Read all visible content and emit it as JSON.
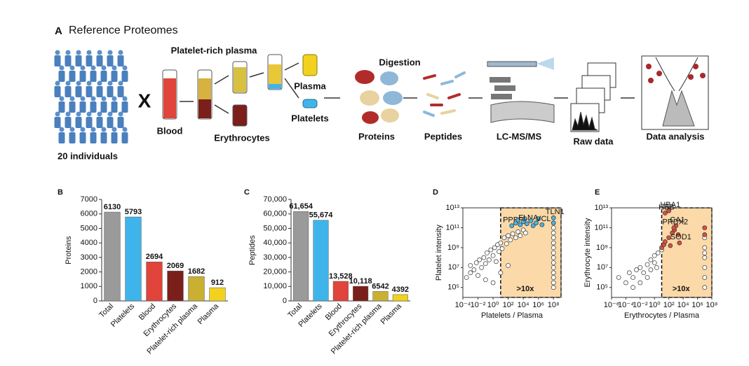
{
  "panel_a": {
    "label": "A",
    "title": "Reference Proteomes",
    "cohort": "20 individuals",
    "cross": "X",
    "blood": "Blood",
    "prp": "Platelet-rich plasma",
    "erythrocytes": "Erythrocytes",
    "plasma": "Plasma",
    "platelets": "Platelets",
    "digestion": "Digestion",
    "proteins": "Proteins",
    "peptides": "Peptides",
    "lcms": "LC-MS/MS",
    "raw": "Raw data",
    "analysis": "Data analysis"
  },
  "chart_data": [
    {
      "type": "bar",
      "panel": "B",
      "y_label": "Proteins",
      "categories": [
        "Total",
        "Platelets",
        "Blood",
        "Erythrocytes",
        "Platelet-rich plasma",
        "Plasma"
      ],
      "values": [
        6130,
        5793,
        2694,
        2069,
        1682,
        912
      ],
      "colors": [
        "#9a9a9a",
        "#3fb4ea",
        "#e0443a",
        "#7a1f1a",
        "#c9b032",
        "#f2d21e"
      ],
      "ylim": [
        0,
        7000
      ],
      "yticks": [
        0,
        1000,
        2000,
        3000,
        4000,
        5000,
        6000,
        7000
      ]
    },
    {
      "type": "bar",
      "panel": "C",
      "y_label": "Peptides",
      "categories": [
        "Total",
        "Platelets",
        "Blood",
        "Erythrocytes",
        "Platelet-rich plasma",
        "Plasma"
      ],
      "values": [
        61654,
        55674,
        13528,
        10118,
        6542,
        4392
      ],
      "value_labels": [
        "61,654",
        "55,674",
        "13,528",
        "10,118",
        "6542",
        "4392"
      ],
      "colors": [
        "#9a9a9a",
        "#3fb4ea",
        "#e0443a",
        "#7a1f1a",
        "#c9b032",
        "#f2d21e"
      ],
      "ylim": [
        0,
        70000
      ],
      "yticks": [
        0,
        {
          "value": 10000,
          "label": "10,000"
        },
        {
          "value": 20000,
          "label": "20,000"
        },
        {
          "value": 30000,
          "label": "30,000"
        },
        {
          "value": 40000,
          "label": "40,000"
        },
        {
          "value": 50000,
          "label": "50,000"
        },
        {
          "value": 60000,
          "label": "60,000"
        },
        {
          "value": 70000,
          "label": "70,000"
        }
      ]
    },
    {
      "type": "scatter",
      "panel": "D",
      "x_label": "Platelets / Plasma",
      "y_label": "Platelet intensity",
      "xscale": "log",
      "yscale": "log",
      "xlim": [
        0.0001,
        1000000000.0
      ],
      "ylim": [
        10000,
        10000000000000.0
      ],
      "xticks": [
        {
          "value": 0.0001,
          "label": "10⁻⁴"
        },
        {
          "value": 0.01,
          "label": "10⁻²"
        },
        {
          "value": 1,
          "label": "10⁰"
        },
        {
          "value": 100,
          "label": "10²"
        },
        {
          "value": 10000,
          "label": "10⁴"
        },
        {
          "value": 1000000,
          "label": "10⁶"
        },
        {
          "value": 100000000,
          "label": "10⁸"
        }
      ],
      "yticks": [
        {
          "value": 100000,
          "label": "10⁵"
        },
        {
          "value": 10000000,
          "label": "10⁷"
        },
        {
          "value": 1000000000,
          "label": "10⁹"
        },
        {
          "value": 100000000000,
          "label": "10¹¹"
        },
        {
          "value": 10000000000000,
          "label": "10¹³"
        }
      ],
      "region_from": 10,
      "region_color": "#fbd9a8",
      "region_label": ">10x",
      "series": [
        {
          "color": "#ffffff",
          "x": [
            0.0003,
            0.001,
            0.001,
            0.003,
            0.006,
            0.01,
            0.016,
            0.03,
            0.06,
            0.1,
            0.16,
            0.3,
            0.5,
            1,
            1.6,
            2.5,
            4,
            6,
            10,
            16,
            30,
            60,
            100,
            200,
            400,
            1000,
            2000,
            4000,
            10000,
            20000,
            1,
            0.1,
            10,
            100,
            100000000.0,
            100000000.0,
            100000000.0,
            100000000.0,
            100000000.0,
            100000000.0,
            100000000.0,
            100000000.0,
            100000000.0,
            100000000.0,
            100000000.0,
            100000000.0,
            100000000.0
          ],
          "values": [
            1000000.0,
            3000000.0,
            16000000.0,
            6000000.0,
            30000000.0,
            1600000.0,
            60000000.0,
            10000000.0,
            100000000.0,
            25000000.0,
            300000000.0,
            60000000.0,
            600000000.0,
            160000000.0,
            1000000000.0,
            40000000.0,
            2000000000.0,
            400000000.0,
            3000000000.0,
            800000000.0,
            10000000000.0,
            2500000000.0,
            16000000000.0,
            6000000000.0,
            25000000000.0,
            10000000000.0,
            40000000000.0,
            16000000000.0,
            60000000000.0,
            30000000000.0,
            300000.0,
            600000.0,
            3000000.0,
            16000000.0,
            100000.0,
            1000000.0,
            10000000.0,
            100000000.0,
            1000000000.0,
            10000000000.0,
            100000000000.0,
            300000.0,
            3000000.0,
            30000000.0,
            300000000.0,
            3000000000.0,
            30000000000.0
          ]
        },
        {
          "color": "#4fb3d9",
          "x": [
            300,
            1000,
            2000,
            4000,
            10000,
            16000,
            30000,
            100000.0,
            200000.0,
            500000.0,
            1000000.0,
            3000000.0,
            100000000.0,
            100000000.0
          ],
          "values": [
            160000000000.0,
            300000000000.0,
            600000000000.0,
            200000000000.0,
            400000000000.0,
            800000000000.0,
            250000000000.0,
            500000000000.0,
            160000000000.0,
            300000000000.0,
            800000000000.0,
            200000000000.0,
            1000000000000.0,
            300000000000.0
          ],
          "labels": [
            "PPBP",
            null,
            null,
            null,
            null,
            null,
            "FLNA",
            null,
            null,
            null,
            null,
            "VCL",
            "TLN1",
            null
          ]
        }
      ]
    },
    {
      "type": "scatter",
      "panel": "E",
      "x_label": "Erythrocytes / Plasma",
      "y_label": "Erythrocyte intensity",
      "xscale": "log",
      "yscale": "log",
      "xlim": [
        1e-06,
        100000000.0
      ],
      "ylim": [
        10000,
        10000000000000.0
      ],
      "xticks": [
        {
          "value": 1e-06,
          "label": "10⁻⁶"
        },
        {
          "value": 0.0001,
          "label": "10⁻⁴"
        },
        {
          "value": 0.01,
          "label": "10⁻²"
        },
        {
          "value": 1,
          "label": "10⁰"
        },
        {
          "value": 100,
          "label": "10²"
        },
        {
          "value": 10000,
          "label": "10⁴"
        },
        {
          "value": 1000000,
          "label": "10⁶"
        },
        {
          "value": 100000000,
          "label": "10⁸"
        }
      ],
      "yticks": [
        {
          "value": 100000,
          "label": "10⁵"
        },
        {
          "value": 10000000,
          "label": "10⁷"
        },
        {
          "value": 1000000000,
          "label": "10⁹"
        },
        {
          "value": 100000000000,
          "label": "10¹¹"
        },
        {
          "value": 10000000000000,
          "label": "10¹³"
        }
      ],
      "region_from": 10,
      "region_color": "#fbd9a8",
      "region_label": ">10x",
      "series": [
        {
          "color": "#ffffff",
          "x": [
            1e-05,
            0.0001,
            0.0003,
            0.001,
            0.003,
            0.01,
            0.03,
            0.1,
            0.3,
            1,
            1,
            3,
            0.3,
            2,
            0.1,
            10,
            0.01,
            0.001,
            10000000.0,
            10000000.0,
            10000000.0,
            10000000.0,
            10000000.0,
            10000000.0,
            10000000.0
          ],
          "values": [
            1000000.0,
            300000.0,
            3000000.0,
            1000000.0,
            6000000.0,
            10000000.0,
            3000000.0,
            20000000.0,
            60000000.0,
            30000000.0,
            160000000.0,
            300000000.0,
            6000000.0,
            10000000.0,
            1000000.0,
            600000000.0,
            300000.0,
            100000.0,
            100000.0,
            1000000.0,
            10000000.0,
            100000000.0,
            1000000000.0,
            10000000000.0,
            300000000.0
          ]
        },
        {
          "color": "#d9503c",
          "x": [
            10,
            20,
            30,
            100,
            160,
            300,
            600,
            1000,
            2000,
            3000,
            100,
            30,
            500,
            10000000.0,
            10000000.0
          ],
          "values": [
            1000000000.0,
            2000000000.0,
            4000000000.0,
            10000000000.0,
            1600000000.0,
            30000000000.0,
            60000000000.0,
            160000000000.0,
            20000000000.0,
            3000000000.0,
            5000000000000.0,
            3000000000000.0,
            100000000000.0,
            20000000000.0,
            100000000000.0
          ],
          "labels": [
            null,
            null,
            null,
            null,
            null,
            null,
            null,
            "CA1",
            null,
            "SOD1",
            "HBA1",
            "HBB",
            "PRDX2",
            null,
            null
          ]
        }
      ]
    }
  ]
}
